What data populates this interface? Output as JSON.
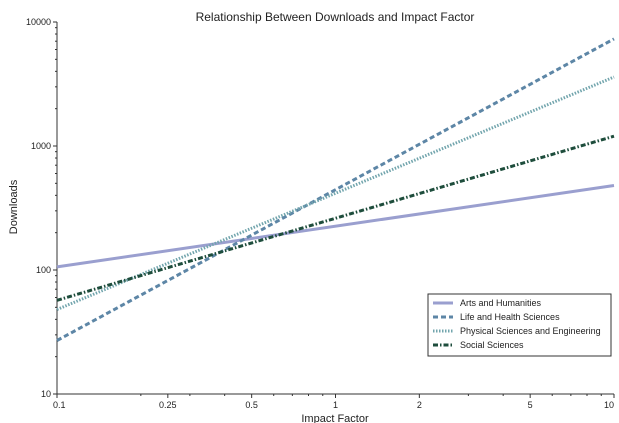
{
  "chart_data": {
    "type": "line",
    "title": "Relationship Between Downloads and Impact Factor",
    "xlabel": "Impact Factor",
    "ylabel": "Downloads",
    "x_scale": "log",
    "y_scale": "log",
    "xlim": [
      0.1,
      10
    ],
    "ylim": [
      10,
      10000
    ],
    "x_ticks": [
      0.1,
      0.25,
      0.5,
      1,
      2,
      5,
      10
    ],
    "x_tick_labels": [
      "0.1",
      "0.25",
      "0.5",
      "1",
      "2",
      "5",
      "10"
    ],
    "y_ticks": [
      10,
      100,
      1000,
      10000
    ],
    "y_tick_labels": [
      "10",
      "100",
      "1000",
      "10000"
    ],
    "grid": false,
    "legend_position": "lower-right",
    "series": [
      {
        "name": "Arts and Humanities",
        "color": "#9a9fcf",
        "style": "solid",
        "x": [
          0.1,
          10
        ],
        "y": [
          106,
          480
        ]
      },
      {
        "name": "Life and Health Sciences",
        "color": "#5d86a6",
        "style": "dashed",
        "x": [
          0.1,
          10
        ],
        "y": [
          27,
          7300
        ]
      },
      {
        "name": "Physical Sciences and Engineering",
        "color": "#72a5ad",
        "style": "dotted",
        "x": [
          0.1,
          10
        ],
        "y": [
          48,
          3600
        ]
      },
      {
        "name": "Social Sciences",
        "color": "#1e4d3c",
        "style": "dashdot",
        "x": [
          0.1,
          10
        ],
        "y": [
          57,
          1200
        ]
      }
    ]
  }
}
